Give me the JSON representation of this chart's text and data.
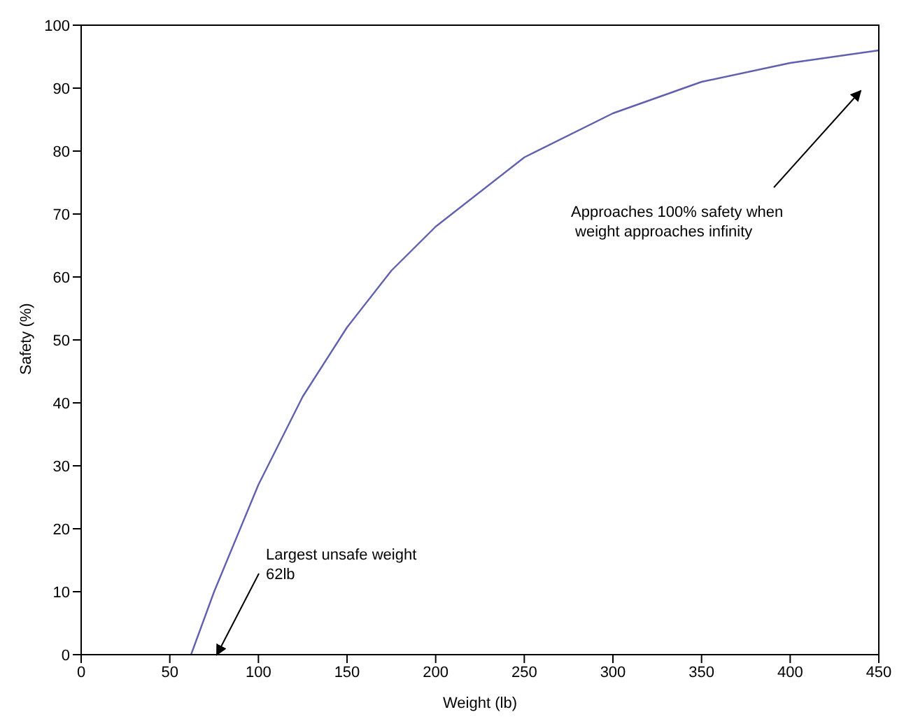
{
  "chart_data": {
    "type": "line",
    "xlabel": "Weight (lb)",
    "ylabel": "Safety (%)",
    "x": [
      62,
      75,
      100,
      125,
      150,
      175,
      200,
      250,
      300,
      350,
      400,
      450
    ],
    "series": [
      {
        "color": "#6060b0",
        "values": [
          0,
          10,
          27,
          41,
          52,
          61,
          68,
          79,
          86,
          91,
          94,
          96
        ]
      }
    ],
    "xlim": [
      0,
      450
    ],
    "xticks": [
      0,
      50,
      100,
      150,
      200,
      250,
      300,
      350,
      400,
      450
    ],
    "ylim": [
      0,
      100
    ],
    "yticks": [
      0,
      10,
      20,
      30,
      40,
      50,
      60,
      70,
      80,
      90,
      100
    ],
    "grid": false,
    "legend": false,
    "marker": "none",
    "line_style": "solid",
    "annotations": [
      "Largest unsafe weight\n62lb",
      "Approaches 100% safety when\n weight approaches infinity"
    ]
  }
}
